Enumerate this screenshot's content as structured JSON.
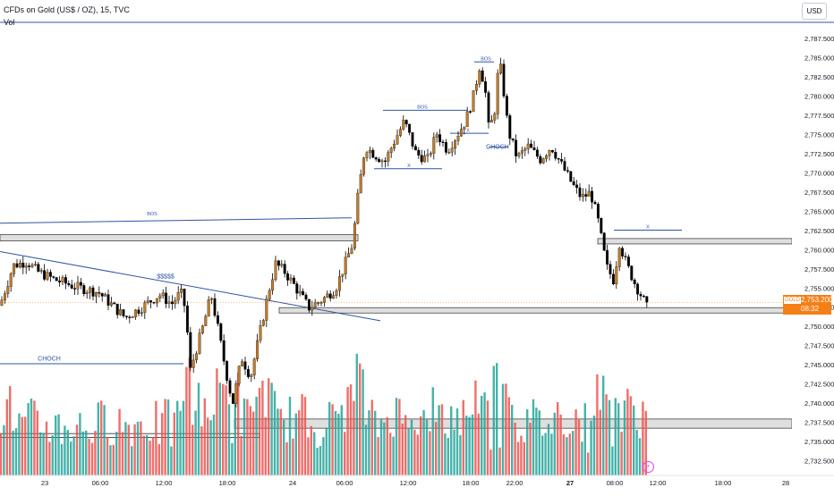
{
  "header": {
    "title": "CFDs on Gold (US$ / OZ), 15, TVC",
    "indicator": "Vol",
    "currency": "USD"
  },
  "last_price": {
    "symbol": "GOLD",
    "value": "2,753.200",
    "countdown": "08:32"
  },
  "chart_data": {
    "type": "candlestick",
    "y_axis": {
      "range": [
        2731.0,
        2790.0
      ],
      "ticks": [
        "2,787.500",
        "2,785.000",
        "2,782.500",
        "2,780.000",
        "2,777.500",
        "2,775.000",
        "2,772.500",
        "2,770.000",
        "2,767.500",
        "2,765.000",
        "2,762.500",
        "2,760.000",
        "2,757.500",
        "2,755.000",
        "2,752.500",
        "2,750.000",
        "2,747.500",
        "2,745.000",
        "2,742.500",
        "2,740.000",
        "2,737.500",
        "2,735.000",
        "2,732.500"
      ]
    },
    "x_axis": {
      "labels": [
        "23",
        "06:00",
        "12:00",
        "18:00",
        "24",
        "06:00",
        "12:00",
        "18:00",
        "22:00",
        "27",
        "08:00",
        "12:00",
        "18:00",
        "28"
      ],
      "bold": [
        "27"
      ]
    },
    "close_path": [
      {
        "x": 0,
        "y": 2752.8
      },
      {
        "x": 15,
        "y": 2758.0
      },
      {
        "x": 30,
        "y": 2758.5
      },
      {
        "x": 42,
        "y": 2757.2
      },
      {
        "x": 60,
        "y": 2756.2
      },
      {
        "x": 85,
        "y": 2755.2
      },
      {
        "x": 110,
        "y": 2754.5
      },
      {
        "x": 128,
        "y": 2752.5
      },
      {
        "x": 140,
        "y": 2751.2
      },
      {
        "x": 158,
        "y": 2752.5
      },
      {
        "x": 178,
        "y": 2754.2
      },
      {
        "x": 192,
        "y": 2753.0
      },
      {
        "x": 202,
        "y": 2754.5
      },
      {
        "x": 208,
        "y": 2752.0
      },
      {
        "x": 212,
        "y": 2744.0
      },
      {
        "x": 218,
        "y": 2746.5
      },
      {
        "x": 228,
        "y": 2750.5
      },
      {
        "x": 236,
        "y": 2754.2
      },
      {
        "x": 244,
        "y": 2749.5
      },
      {
        "x": 252,
        "y": 2744.5
      },
      {
        "x": 260,
        "y": 2740.0
      },
      {
        "x": 270,
        "y": 2746.0
      },
      {
        "x": 280,
        "y": 2743.5
      },
      {
        "x": 290,
        "y": 2749.0
      },
      {
        "x": 300,
        "y": 2754.5
      },
      {
        "x": 308,
        "y": 2758.2
      },
      {
        "x": 318,
        "y": 2757.2
      },
      {
        "x": 330,
        "y": 2755.2
      },
      {
        "x": 345,
        "y": 2752.5
      },
      {
        "x": 360,
        "y": 2753.5
      },
      {
        "x": 375,
        "y": 2755.0
      },
      {
        "x": 385,
        "y": 2758.0
      },
      {
        "x": 394,
        "y": 2760.8
      },
      {
        "x": 400,
        "y": 2767.0
      },
      {
        "x": 408,
        "y": 2773.5
      },
      {
        "x": 418,
        "y": 2772.5
      },
      {
        "x": 430,
        "y": 2771.5
      },
      {
        "x": 442,
        "y": 2774.5
      },
      {
        "x": 452,
        "y": 2776.8
      },
      {
        "x": 465,
        "y": 2772.5
      },
      {
        "x": 478,
        "y": 2771.8
      },
      {
        "x": 488,
        "y": 2775.2
      },
      {
        "x": 500,
        "y": 2773.0
      },
      {
        "x": 512,
        "y": 2775.2
      },
      {
        "x": 520,
        "y": 2776.8
      },
      {
        "x": 528,
        "y": 2779.5
      },
      {
        "x": 536,
        "y": 2784.0
      },
      {
        "x": 542,
        "y": 2781.2
      },
      {
        "x": 546,
        "y": 2776.0
      },
      {
        "x": 552,
        "y": 2777.2
      },
      {
        "x": 558,
        "y": 2785.0
      },
      {
        "x": 563,
        "y": 2780.5
      },
      {
        "x": 568,
        "y": 2775.5
      },
      {
        "x": 578,
        "y": 2772.0
      },
      {
        "x": 590,
        "y": 2773.5
      },
      {
        "x": 604,
        "y": 2771.8
      },
      {
        "x": 616,
        "y": 2773.5
      },
      {
        "x": 628,
        "y": 2771.0
      },
      {
        "x": 640,
        "y": 2768.5
      },
      {
        "x": 650,
        "y": 2766.8
      },
      {
        "x": 660,
        "y": 2767.5
      },
      {
        "x": 668,
        "y": 2764.0
      },
      {
        "x": 678,
        "y": 2757.8
      },
      {
        "x": 686,
        "y": 2756.0
      },
      {
        "x": 692,
        "y": 2761.0
      },
      {
        "x": 700,
        "y": 2758.2
      },
      {
        "x": 710,
        "y": 2755.5
      },
      {
        "x": 718,
        "y": 2753.8
      },
      {
        "x": 723,
        "y": 2752.5
      }
    ],
    "current_price": 2753.2,
    "zones": [
      {
        "x1": 0,
        "x2": 400,
        "y1": 2761.2,
        "y2": 2762.0
      },
      {
        "x1": 312,
        "x2": 885,
        "y1": 2751.8,
        "y2": 2752.5
      },
      {
        "x1": 668,
        "x2": 885,
        "y1": 2760.8,
        "y2": 2761.5
      },
      {
        "x1": 262,
        "x2": 885,
        "y1": 2736.8,
        "y2": 2738.0
      }
    ],
    "zone_small": [
      {
        "x1": 0,
        "x2": 290,
        "y1": 2735.6,
        "y2": 2736.1
      }
    ],
    "trend_lines": [
      {
        "x1": 0,
        "y1": 2759.8,
        "x2": 425,
        "y2": 2750.8
      },
      {
        "x1": 0,
        "y1": 2745.2,
        "x2": 205,
        "y2": 2745.2
      },
      {
        "x1": 0,
        "y1": 2763.5,
        "x2": 393,
        "y2": 2764.2
      },
      {
        "x1": 428,
        "y1": 2778.2,
        "x2": 522,
        "y2": 2778.2
      },
      {
        "x1": 418,
        "y1": 2770.6,
        "x2": 494,
        "y2": 2770.6
      },
      {
        "x1": 686,
        "y1": 2762.6,
        "x2": 762,
        "y2": 2762.6
      },
      {
        "x1": 503,
        "y1": 2775.2,
        "x2": 546,
        "y2": 2775.2
      },
      {
        "x1": 530,
        "y1": 2784.5,
        "x2": 552,
        "y2": 2784.5
      },
      {
        "x1": 546,
        "y1": 2773.4,
        "x2": 568,
        "y2": 2773.4
      }
    ],
    "annotations": [
      {
        "text": "BOS",
        "x": 170,
        "y": 2764.5
      },
      {
        "text": "$$$$$",
        "x": 185,
        "y": 2756.3
      },
      {
        "text": "CHOCH",
        "x": 55,
        "y": 2745.6
      },
      {
        "text": "BOS",
        "x": 472,
        "y": 2778.4
      },
      {
        "text": "X",
        "x": 457,
        "y": 2770.8
      },
      {
        "text": "X",
        "x": 523,
        "y": 2775.4
      },
      {
        "text": "BOS",
        "x": 543,
        "y": 2784.7
      },
      {
        "text": "CHOCH",
        "x": 556,
        "y": 2773.2
      },
      {
        "text": "X",
        "x": 724,
        "y": 2762.8
      }
    ],
    "colors": {
      "up": "#c17d28",
      "down": "#000000",
      "volume_up": "#26a69a",
      "volume_down": "#ef5350",
      "line": "#2f54a6",
      "zone_fill": "#d7d7d7",
      "zone_border": "#444444",
      "price": "#f57f17"
    }
  }
}
